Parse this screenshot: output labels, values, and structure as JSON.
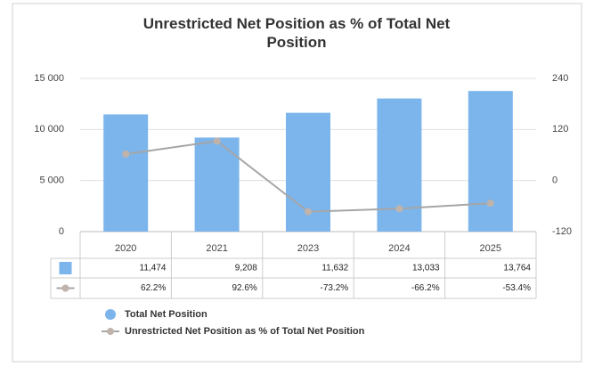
{
  "chart_data": {
    "type": "bar",
    "title": "Unrestricted Net Position as % of Total Net Position",
    "categories": [
      "2020",
      "2021",
      "2023",
      "2024",
      "2025"
    ],
    "series": [
      {
        "name": "Total Net Position",
        "type": "bar",
        "color": "#7cb5ec",
        "values": [
          11474,
          9208,
          11632,
          13033,
          13764
        ],
        "value_labels": [
          "11,474",
          "9,208",
          "11,632",
          "13,033",
          "13,764"
        ]
      },
      {
        "name": "Unrestricted Net Position as % of Total Net Position",
        "type": "line",
        "axis": "y2",
        "color": "#a6a6a6",
        "values": [
          62.2,
          92.6,
          -73.2,
          -66.2,
          -53.4
        ],
        "value_labels": [
          "62.2%",
          "92.6%",
          "-73.2%",
          "-66.2%",
          "-53.4%"
        ]
      }
    ],
    "ylim": [
      0,
      15000
    ],
    "yticks": [
      0,
      {
        "value": 5000,
        "label": "5 000"
      },
      {
        "value": 10000,
        "label": "10 000"
      },
      {
        "value": 15000,
        "label": "15 000"
      }
    ],
    "y2lim": [
      -120,
      240
    ],
    "y2ticks": [
      -120,
      0,
      120,
      240
    ],
    "grid": true
  }
}
